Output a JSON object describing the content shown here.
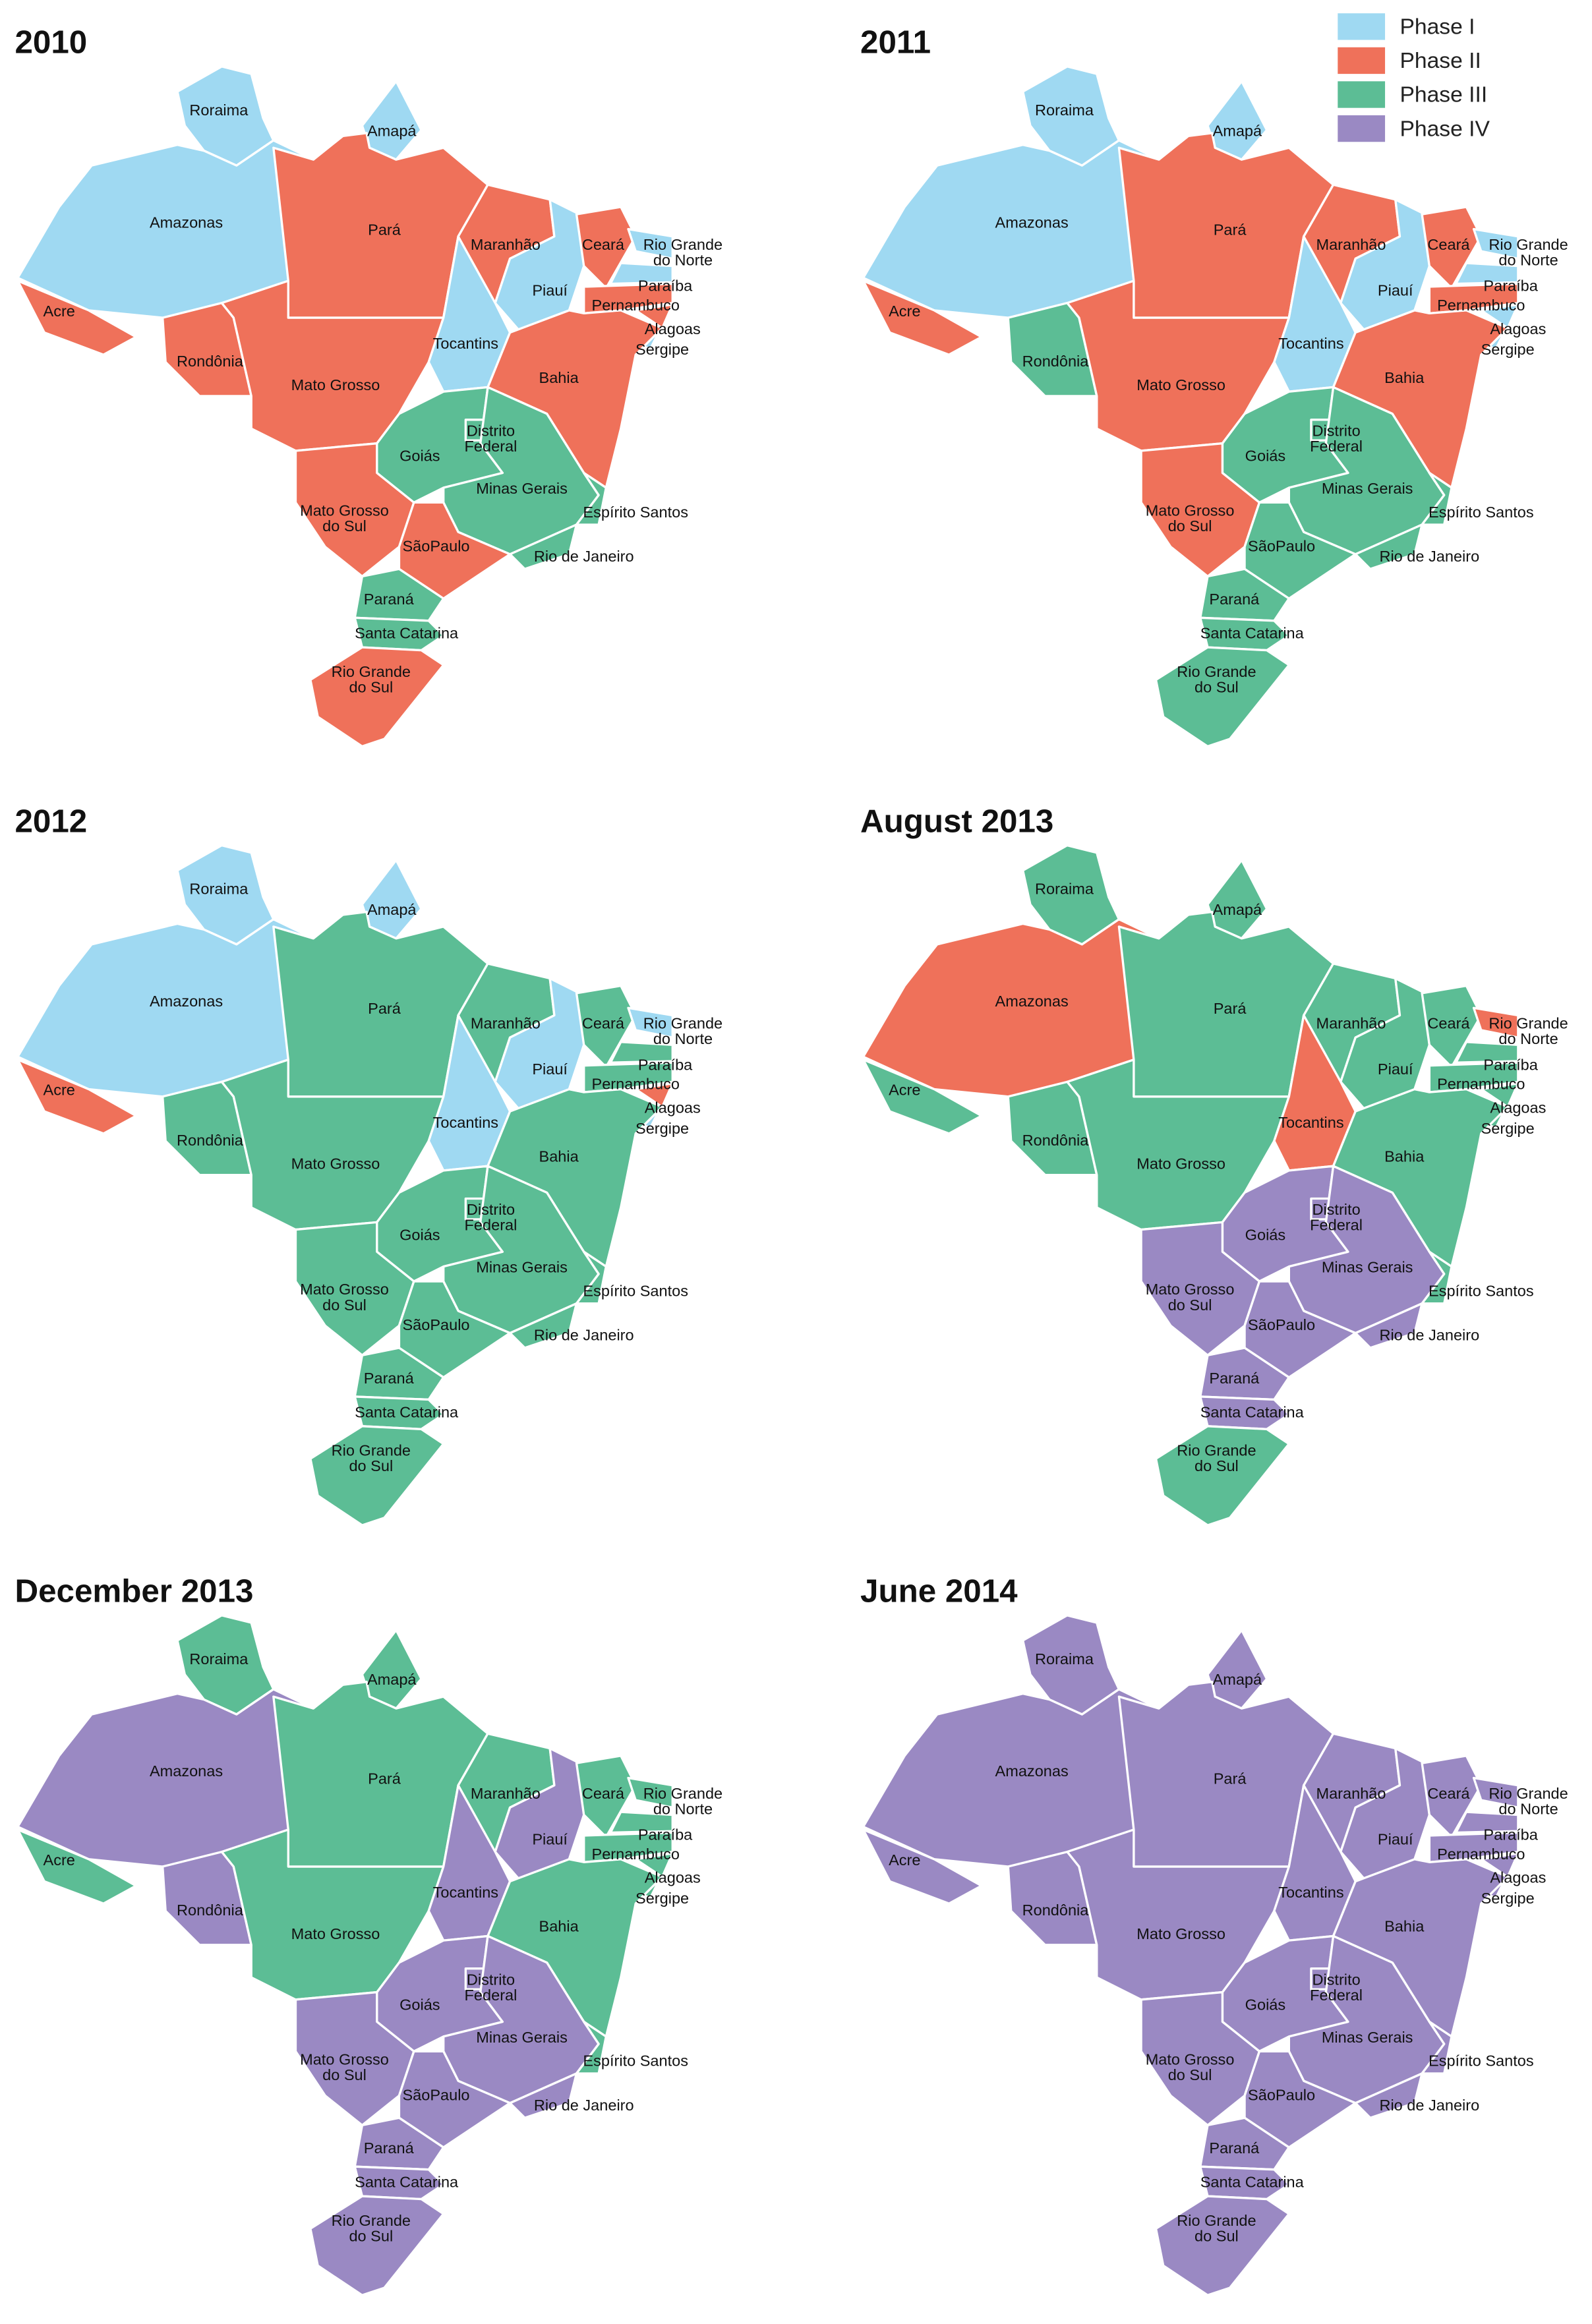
{
  "legend": [
    {
      "label": "Phase I",
      "color": "#9fd9f2"
    },
    {
      "label": "Phase II",
      "color": "#ef715a"
    },
    {
      "label": "Phase III",
      "color": "#5cbd95"
    },
    {
      "label": "Phase IV",
      "color": "#9a89c3"
    }
  ],
  "states": [
    {
      "label": [
        "Roraima"
      ]
    },
    {
      "label": [
        "Amapá"
      ]
    },
    {
      "label": [
        "Amazonas"
      ]
    },
    {
      "label": [
        "Pará"
      ]
    },
    {
      "label": [
        "Acre"
      ]
    },
    {
      "label": [
        "Rondônia"
      ]
    },
    {
      "label": [
        "Mato Grosso"
      ]
    },
    {
      "label": [
        "Maranhão"
      ]
    },
    {
      "label": [
        "Piauí"
      ]
    },
    {
      "label": [
        "Ceará"
      ]
    },
    {
      "label": [
        "Rio Grande",
        "do Norte"
      ]
    },
    {
      "label": [
        "Paraíba"
      ]
    },
    {
      "label": [
        "Pernambuco"
      ]
    },
    {
      "label": [
        "Alagoas"
      ]
    },
    {
      "label": [
        "Sergipe"
      ]
    },
    {
      "label": [
        "Tocantins"
      ]
    },
    {
      "label": [
        "Bahia"
      ]
    },
    {
      "label": [
        "Goiás"
      ]
    },
    {
      "label": [
        "Distrito",
        "Federal"
      ]
    },
    {
      "label": [
        "Minas Gerais"
      ]
    },
    {
      "label": [
        "Espírito Santos"
      ]
    },
    {
      "label": [
        "Mato Grosso",
        "do Sul"
      ]
    },
    {
      "label": [
        "SãoPaulo"
      ]
    },
    {
      "label": [
        "Rio de Janeiro"
      ]
    },
    {
      "label": [
        "Paraná"
      ]
    },
    {
      "label": [
        "Santa Catarina"
      ]
    },
    {
      "label": [
        "Rio Grande",
        "do Sul"
      ]
    }
  ],
  "panels": [
    {
      "title": "2010",
      "phases": [
        "Phase I",
        "Phase I",
        "Phase I",
        "Phase II",
        "Phase II",
        "Phase II",
        "Phase II",
        "Phase II",
        "Phase I",
        "Phase II",
        "Phase I",
        "Phase I",
        "Phase II",
        "Phase II",
        "Phase I",
        "Phase I",
        "Phase II",
        "Phase III",
        "Phase III",
        "Phase III",
        "Phase III",
        "Phase II",
        "Phase II",
        "Phase III",
        "Phase III",
        "Phase III",
        "Phase II"
      ]
    },
    {
      "title": "2011",
      "phases": [
        "Phase I",
        "Phase I",
        "Phase I",
        "Phase II",
        "Phase II",
        "Phase III",
        "Phase II",
        "Phase II",
        "Phase I",
        "Phase II",
        "Phase I",
        "Phase I",
        "Phase II",
        "Phase I",
        "Phase I",
        "Phase I",
        "Phase II",
        "Phase III",
        "Phase III",
        "Phase III",
        "Phase III",
        "Phase II",
        "Phase III",
        "Phase III",
        "Phase III",
        "Phase III",
        "Phase III"
      ]
    },
    {
      "title": "2012",
      "phases": [
        "Phase I",
        "Phase I",
        "Phase I",
        "Phase III",
        "Phase II",
        "Phase III",
        "Phase III",
        "Phase III",
        "Phase I",
        "Phase III",
        "Phase I",
        "Phase III",
        "Phase III",
        "Phase II",
        "Phase I",
        "Phase I",
        "Phase III",
        "Phase III",
        "Phase III",
        "Phase III",
        "Phase III",
        "Phase III",
        "Phase III",
        "Phase III",
        "Phase III",
        "Phase III",
        "Phase III"
      ]
    },
    {
      "title": "August 2013",
      "phases": [
        "Phase III",
        "Phase III",
        "Phase II",
        "Phase III",
        "Phase III",
        "Phase III",
        "Phase III",
        "Phase III",
        "Phase III",
        "Phase III",
        "Phase II",
        "Phase III",
        "Phase III",
        "Phase III",
        "Phase III",
        "Phase II",
        "Phase III",
        "Phase IV",
        "Phase IV",
        "Phase IV",
        "Phase III",
        "Phase IV",
        "Phase IV",
        "Phase IV",
        "Phase IV",
        "Phase IV",
        "Phase III"
      ]
    },
    {
      "title": "December 2013",
      "phases": [
        "Phase III",
        "Phase III",
        "Phase IV",
        "Phase III",
        "Phase III",
        "Phase IV",
        "Phase III",
        "Phase III",
        "Phase IV",
        "Phase III",
        "Phase III",
        "Phase III",
        "Phase III",
        "Phase III",
        "Phase III",
        "Phase IV",
        "Phase III",
        "Phase IV",
        "Phase IV",
        "Phase IV",
        "Phase III",
        "Phase IV",
        "Phase IV",
        "Phase IV",
        "Phase IV",
        "Phase IV",
        "Phase IV"
      ]
    },
    {
      "title": "June 2014",
      "phases": [
        "Phase IV",
        "Phase IV",
        "Phase IV",
        "Phase IV",
        "Phase IV",
        "Phase IV",
        "Phase IV",
        "Phase IV",
        "Phase IV",
        "Phase IV",
        "Phase IV",
        "Phase IV",
        "Phase IV",
        "Phase IV",
        "Phase IV",
        "Phase IV",
        "Phase IV",
        "Phase IV",
        "Phase IV",
        "Phase IV",
        "Phase IV",
        "Phase IV",
        "Phase IV",
        "Phase IV",
        "Phase IV",
        "Phase IV",
        "Phase IV"
      ]
    }
  ]
}
